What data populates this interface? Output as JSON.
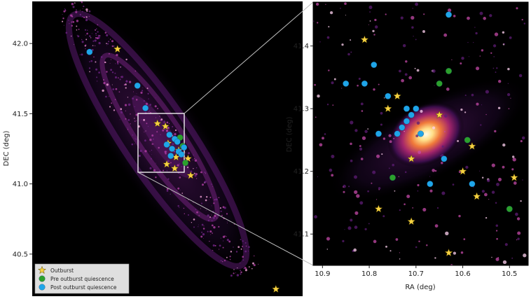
{
  "chart_data": [
    {
      "type": "scatter",
      "panel": "full-view",
      "xlabel": "",
      "ylabel": "DEC (deg)",
      "ylim": [
        40.2,
        42.3
      ],
      "yticks": [
        "42.0",
        "41.5",
        "41.0",
        "40.5"
      ],
      "ytick_values": [
        42.0,
        41.5,
        41.0,
        40.5
      ],
      "legend_position": "bottom-left",
      "legend": [
        {
          "label": "Outburst",
          "color": "#f5d142",
          "marker": "star"
        },
        {
          "label": "Pre outburst quiescence",
          "color": "#2ca02c",
          "marker": "circle"
        },
        {
          "label": "Post outburst quiescence",
          "color": "#1fa5e8",
          "marker": "circle"
        }
      ],
      "inset_box": {
        "dec_range": [
          40.98,
          41.47
        ]
      },
      "series": [
        {
          "name": "Outburst",
          "marker": "star",
          "color": "#f5d142",
          "points": [
            [
              0.43,
              41.96
            ],
            [
              0.73,
              41.43
            ],
            [
              0.79,
              41.41
            ],
            [
              0.81,
              41.29
            ],
            [
              0.89,
              41.24
            ],
            [
              0.87,
              41.19
            ],
            [
              0.8,
              41.14
            ],
            [
              0.96,
              41.18
            ],
            [
              0.86,
              41.11
            ],
            [
              0.98,
              41.06
            ],
            [
              1.62,
              40.25
            ]
          ]
        },
        {
          "name": "Pre outburst quiescence",
          "marker": "circle",
          "color": "#2ca02c",
          "points": [
            [
              0.9,
              41.33
            ],
            [
              0.92,
              41.27
            ],
            [
              0.94,
              41.15
            ]
          ]
        },
        {
          "name": "Post outburst quiescence",
          "marker": "circle",
          "color": "#1fa5e8",
          "points": [
            [
              0.22,
              41.94
            ],
            [
              0.58,
              41.7
            ],
            [
              0.64,
              41.54
            ],
            [
              0.82,
              41.35
            ],
            [
              0.86,
              41.32
            ],
            [
              0.88,
              41.3
            ],
            [
              0.8,
              41.28
            ],
            [
              0.84,
              41.25
            ],
            [
              0.89,
              41.23
            ],
            [
              0.91,
              41.21
            ],
            [
              0.83,
              41.2
            ],
            [
              0.93,
              41.26
            ]
          ]
        }
      ]
    },
    {
      "type": "scatter",
      "panel": "zoom-view",
      "xlabel": "RA (deg)",
      "ylabel": "DEC (deg)",
      "xlim": [
        10.92,
        10.46
      ],
      "ylim": [
        41.05,
        41.47
      ],
      "xticks": [
        "10.9",
        "10.8",
        "10.7",
        "10.6",
        "10.5"
      ],
      "xtick_values": [
        10.9,
        10.8,
        10.7,
        10.6,
        10.5
      ],
      "yticks": [
        "41.4",
        "41.3",
        "41.2",
        "41.1"
      ],
      "ytick_values": [
        41.4,
        41.3,
        41.2,
        41.1
      ],
      "series": [
        {
          "name": "Outburst",
          "marker": "star",
          "color": "#f5d142",
          "points": [
            [
              10.81,
              41.41
            ],
            [
              10.74,
              41.32
            ],
            [
              10.76,
              41.3
            ],
            [
              10.65,
              41.29
            ],
            [
              10.71,
              41.22
            ],
            [
              10.58,
              41.24
            ],
            [
              10.6,
              41.2
            ],
            [
              10.57,
              41.16
            ],
            [
              10.49,
              41.19
            ],
            [
              10.78,
              41.14
            ],
            [
              10.71,
              41.12
            ],
            [
              10.63,
              41.07
            ]
          ]
        },
        {
          "name": "Pre outburst quiescence",
          "marker": "circle",
          "color": "#2ca02c",
          "points": [
            [
              10.63,
              41.36
            ],
            [
              10.65,
              41.34
            ],
            [
              10.59,
              41.25
            ],
            [
              10.75,
              41.19
            ],
            [
              10.5,
              41.14
            ]
          ]
        },
        {
          "name": "Post outburst quiescence",
          "marker": "circle",
          "color": "#1fa5e8",
          "points": [
            [
              10.63,
              41.45
            ],
            [
              10.79,
              41.37
            ],
            [
              10.85,
              41.34
            ],
            [
              10.81,
              41.34
            ],
            [
              10.76,
              41.32
            ],
            [
              10.72,
              41.3
            ],
            [
              10.7,
              41.3
            ],
            [
              10.71,
              41.29
            ],
            [
              10.72,
              41.28
            ],
            [
              10.73,
              41.27
            ],
            [
              10.69,
              41.26
            ],
            [
              10.78,
              41.26
            ],
            [
              10.74,
              41.26
            ],
            [
              10.64,
              41.22
            ],
            [
              10.67,
              41.18
            ],
            [
              10.58,
              41.18
            ]
          ]
        }
      ]
    }
  ]
}
